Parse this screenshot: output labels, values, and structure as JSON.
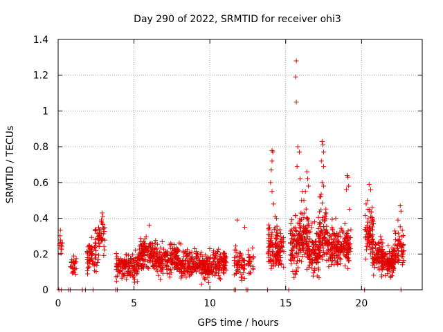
{
  "chart_data": {
    "type": "scatter",
    "title": "Day 290 of 2022, SRMTID for receiver ohi3",
    "xlabel": "GPS time / hours",
    "ylabel": "SRMTID / TECUs",
    "xlim": [
      0,
      24
    ],
    "ylim": [
      0,
      1.4
    ],
    "x_ticks": [
      0,
      5,
      10,
      15,
      20
    ],
    "x_tick_labels": [
      "0",
      "5",
      "10",
      "15",
      "20"
    ],
    "y_ticks": [
      0,
      0.2,
      0.4,
      0.6,
      0.8,
      1.0,
      1.2,
      1.4
    ],
    "y_tick_labels": [
      "0",
      "0.2",
      "0.4",
      "0.6",
      "0.8",
      "1",
      "1.2",
      "1.4"
    ],
    "grid": true,
    "marker": "+",
    "color": "#e00000",
    "series": [
      {
        "name": "SRMTID",
        "clusters": [
          {
            "x_range": [
              0.0,
              0.3
            ],
            "y_mean": 0.26,
            "y_spread": 0.03,
            "count": 12
          },
          {
            "x_range": [
              0.8,
              1.2
            ],
            "y_mean": 0.13,
            "y_spread": 0.03,
            "count": 25
          },
          {
            "x_range": [
              1.9,
              2.6
            ],
            "y_mean": 0.19,
            "y_spread": 0.05,
            "count": 55
          },
          {
            "x_range": [
              2.4,
              3.1
            ],
            "y_mean": 0.27,
            "y_spread": 0.06,
            "count": 50
          },
          {
            "x_range": [
              3.8,
              5.3
            ],
            "y_mean": 0.13,
            "y_spread": 0.04,
            "count": 140
          },
          {
            "x_range": [
              5.3,
              6.5
            ],
            "y_mean": 0.2,
            "y_spread": 0.05,
            "count": 140
          },
          {
            "x_range": [
              6.5,
              8.0
            ],
            "y_mean": 0.17,
            "y_spread": 0.045,
            "count": 160
          },
          {
            "x_range": [
              8.0,
              9.4
            ],
            "y_mean": 0.15,
            "y_spread": 0.04,
            "count": 140
          },
          {
            "x_range": [
              9.4,
              10.2
            ],
            "y_mean": 0.12,
            "y_spread": 0.04,
            "count": 90
          },
          {
            "x_range": [
              10.2,
              11.1
            ],
            "y_mean": 0.15,
            "y_spread": 0.04,
            "count": 90
          },
          {
            "x_range": [
              11.6,
              12.3
            ],
            "y_mean": 0.14,
            "y_spread": 0.05,
            "count": 55
          },
          {
            "x_range": [
              12.5,
              12.9
            ],
            "y_mean": 0.16,
            "y_spread": 0.04,
            "count": 25
          },
          {
            "x_range": [
              13.8,
              14.5
            ],
            "y_mean": 0.24,
            "y_spread": 0.07,
            "count": 70
          },
          {
            "x_range": [
              14.3,
              14.9
            ],
            "y_mean": 0.22,
            "y_spread": 0.07,
            "count": 60
          },
          {
            "x_range": [
              15.3,
              16.0
            ],
            "y_mean": 0.25,
            "y_spread": 0.08,
            "count": 90
          },
          {
            "x_range": [
              15.9,
              16.5
            ],
            "y_mean": 0.3,
            "y_spread": 0.09,
            "count": 70
          },
          {
            "x_range": [
              16.4,
              17.3
            ],
            "y_mean": 0.22,
            "y_spread": 0.07,
            "count": 110
          },
          {
            "x_range": [
              17.1,
              17.7
            ],
            "y_mean": 0.32,
            "y_spread": 0.09,
            "count": 70
          },
          {
            "x_range": [
              17.7,
              18.6
            ],
            "y_mean": 0.24,
            "y_spread": 0.06,
            "count": 110
          },
          {
            "x_range": [
              18.6,
              19.3
            ],
            "y_mean": 0.25,
            "y_spread": 0.06,
            "count": 80
          },
          {
            "x_range": [
              20.2,
              20.8
            ],
            "y_mean": 0.32,
            "y_spread": 0.07,
            "count": 70
          },
          {
            "x_range": [
              20.7,
              21.4
            ],
            "y_mean": 0.2,
            "y_spread": 0.05,
            "count": 80
          },
          {
            "x_range": [
              21.3,
              22.2
            ],
            "y_mean": 0.15,
            "y_spread": 0.04,
            "count": 110
          },
          {
            "x_range": [
              22.1,
              22.8
            ],
            "y_mean": 0.23,
            "y_spread": 0.06,
            "count": 60
          }
        ],
        "notable_points": [
          {
            "x": 15.7,
            "y": 1.28
          },
          {
            "x": 15.65,
            "y": 1.19
          },
          {
            "x": 15.7,
            "y": 1.05
          },
          {
            "x": 15.8,
            "y": 0.8
          },
          {
            "x": 15.9,
            "y": 0.77
          },
          {
            "x": 15.75,
            "y": 0.69
          },
          {
            "x": 15.95,
            "y": 0.62
          },
          {
            "x": 16.1,
            "y": 0.55
          },
          {
            "x": 16.05,
            "y": 0.5
          },
          {
            "x": 17.4,
            "y": 0.83
          },
          {
            "x": 17.45,
            "y": 0.81
          },
          {
            "x": 17.5,
            "y": 0.77
          },
          {
            "x": 17.35,
            "y": 0.72
          },
          {
            "x": 17.5,
            "y": 0.69
          },
          {
            "x": 17.4,
            "y": 0.6
          },
          {
            "x": 17.5,
            "y": 0.58
          },
          {
            "x": 17.3,
            "y": 0.52
          },
          {
            "x": 14.1,
            "y": 0.78
          },
          {
            "x": 14.15,
            "y": 0.77
          },
          {
            "x": 14.1,
            "y": 0.72
          },
          {
            "x": 14.05,
            "y": 0.67
          },
          {
            "x": 14.0,
            "y": 0.6
          },
          {
            "x": 14.1,
            "y": 0.55
          },
          {
            "x": 14.2,
            "y": 0.48
          },
          {
            "x": 14.3,
            "y": 0.41
          },
          {
            "x": 14.4,
            "y": 0.4
          },
          {
            "x": 16.4,
            "y": 0.66
          },
          {
            "x": 16.45,
            "y": 0.62
          },
          {
            "x": 16.5,
            "y": 0.58
          },
          {
            "x": 16.3,
            "y": 0.55
          },
          {
            "x": 16.2,
            "y": 0.5
          },
          {
            "x": 19.05,
            "y": 0.64
          },
          {
            "x": 19.1,
            "y": 0.63
          },
          {
            "x": 19.15,
            "y": 0.58
          },
          {
            "x": 19.0,
            "y": 0.56
          },
          {
            "x": 19.2,
            "y": 0.45
          },
          {
            "x": 20.5,
            "y": 0.59
          },
          {
            "x": 20.6,
            "y": 0.56
          },
          {
            "x": 20.4,
            "y": 0.5
          },
          {
            "x": 20.3,
            "y": 0.48
          },
          {
            "x": 20.7,
            "y": 0.46
          },
          {
            "x": 22.55,
            "y": 0.47
          },
          {
            "x": 22.6,
            "y": 0.44
          },
          {
            "x": 22.4,
            "y": 0.39
          },
          {
            "x": 2.9,
            "y": 0.43
          },
          {
            "x": 2.95,
            "y": 0.41
          },
          {
            "x": 2.85,
            "y": 0.38
          },
          {
            "x": 6.0,
            "y": 0.36
          },
          {
            "x": 11.8,
            "y": 0.39
          },
          {
            "x": 12.3,
            "y": 0.35
          },
          {
            "x": 16.9,
            "y": 0.38
          },
          {
            "x": 18.3,
            "y": 0.4
          },
          {
            "x": 18.9,
            "y": 0.37
          }
        ],
        "zero_points_x": [
          0.05,
          0.2,
          0.7,
          0.8,
          1.6,
          1.8,
          2.3,
          3.8,
          3.9,
          11.6,
          11.7,
          12.4,
          12.5,
          13.8,
          15.2,
          20.2,
          22.6
        ]
      }
    ]
  }
}
